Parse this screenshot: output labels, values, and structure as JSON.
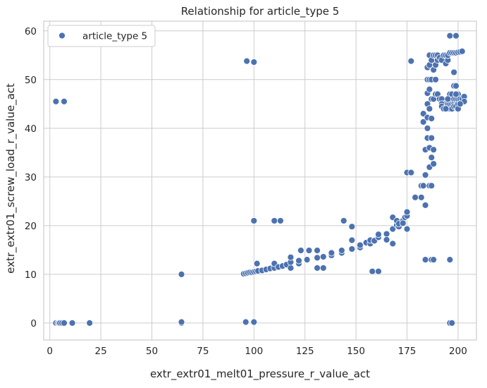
{
  "chart_data": {
    "type": "scatter",
    "title": "Relationship for article_type 5",
    "xlabel": "extr_extr01_melt01_pressure_r_value_act",
    "ylabel": "extr_extr01_screw_load_r_value_act",
    "xlim": [
      -3,
      209
    ],
    "ylim": [
      -3.5,
      62
    ],
    "xticks": [
      0,
      25,
      50,
      75,
      100,
      125,
      150,
      175,
      200
    ],
    "yticks": [
      0,
      10,
      20,
      30,
      40,
      50,
      60
    ],
    "grid": true,
    "legend": "top-left",
    "colors": {
      "point": "#4c72b0",
      "grid": "#cccccc",
      "background": "#ffffff"
    },
    "series": [
      {
        "name": "article_type 5",
        "points": [
          [
            3,
            45.5
          ],
          [
            7,
            45.5
          ],
          [
            3,
            0
          ],
          [
            4,
            0
          ],
          [
            4.5,
            0
          ],
          [
            5,
            0
          ],
          [
            6,
            0
          ],
          [
            7,
            0
          ],
          [
            11,
            0
          ],
          [
            19.5,
            0
          ],
          [
            64.5,
            10
          ],
          [
            64.5,
            0
          ],
          [
            64.5,
            0.2
          ],
          [
            96.5,
            53.8
          ],
          [
            100,
            53.6
          ],
          [
            100,
            21
          ],
          [
            96,
            0.2
          ],
          [
            100,
            0.2
          ],
          [
            95,
            10.1
          ],
          [
            96,
            10.2
          ],
          [
            97,
            10.3
          ],
          [
            98,
            10.4
          ],
          [
            99,
            10.4
          ],
          [
            100,
            10.5
          ],
          [
            101,
            10.6
          ],
          [
            101.5,
            12.2
          ],
          [
            102,
            10.7
          ],
          [
            104,
            10.8
          ],
          [
            106,
            11
          ],
          [
            108,
            11.2
          ],
          [
            110,
            11.3
          ],
          [
            110,
            12.2
          ],
          [
            112,
            11.5
          ],
          [
            114,
            11.7
          ],
          [
            116,
            12
          ],
          [
            118,
            11.3
          ],
          [
            118,
            12.5
          ],
          [
            118,
            13.5
          ],
          [
            122,
            12.2
          ],
          [
            122,
            12.8
          ],
          [
            123,
            14.9
          ],
          [
            126,
            13
          ],
          [
            127,
            14.9
          ],
          [
            131,
            13.4
          ],
          [
            131,
            14.9
          ],
          [
            131,
            11.3
          ],
          [
            134,
            11.3
          ],
          [
            134,
            13.6
          ],
          [
            138,
            13.9
          ],
          [
            138,
            14.4
          ],
          [
            143,
            14.4
          ],
          [
            143,
            14.9
          ],
          [
            144,
            21
          ],
          [
            148,
            15.2
          ],
          [
            148,
            17
          ],
          [
            148,
            19.8
          ],
          [
            152,
            15.5
          ],
          [
            152,
            16
          ],
          [
            155,
            16.5
          ],
          [
            157,
            16.3
          ],
          [
            157,
            17
          ],
          [
            158,
            10.6
          ],
          [
            159,
            16.8
          ],
          [
            159,
            16.9
          ],
          [
            161,
            10.6
          ],
          [
            161,
            17.6
          ],
          [
            161,
            18.2
          ],
          [
            165,
            18.3
          ],
          [
            165,
            17.1
          ],
          [
            168,
            19.3
          ],
          [
            168,
            16.3
          ],
          [
            168,
            21.7
          ],
          [
            170,
            20.1
          ],
          [
            170,
            21
          ],
          [
            171,
            19.8
          ],
          [
            171,
            20.4
          ],
          [
            173,
            21
          ],
          [
            173,
            20.5
          ],
          [
            174,
            21.7
          ],
          [
            175,
            22
          ],
          [
            175,
            19.3
          ],
          [
            175,
            22.8
          ],
          [
            175,
            30.9
          ],
          [
            177,
            30.9
          ],
          [
            177,
            53.8
          ],
          [
            110,
            21
          ],
          [
            113,
            21
          ],
          [
            179,
            25.8
          ],
          [
            182,
            25.8
          ],
          [
            182,
            28.2
          ],
          [
            183,
            28.2
          ],
          [
            183,
            41.3
          ],
          [
            183,
            43
          ],
          [
            184,
            24.2
          ],
          [
            184,
            13
          ],
          [
            184,
            30.4
          ],
          [
            184,
            35.6
          ],
          [
            185,
            38
          ],
          [
            185,
            40
          ],
          [
            185,
            42.2
          ],
          [
            185,
            45
          ],
          [
            185,
            47.2
          ],
          [
            185,
            50
          ],
          [
            185,
            52.5
          ],
          [
            186,
            28.2
          ],
          [
            186,
            32
          ],
          [
            186,
            36
          ],
          [
            186,
            44
          ],
          [
            186,
            48
          ],
          [
            186,
            50
          ],
          [
            186,
            53
          ],
          [
            186,
            55
          ],
          [
            187,
            28.2
          ],
          [
            187,
            34
          ],
          [
            187,
            38
          ],
          [
            187,
            42
          ],
          [
            187,
            46
          ],
          [
            187,
            50
          ],
          [
            187,
            54
          ],
          [
            187,
            13
          ],
          [
            188,
            13
          ],
          [
            188,
            32.7
          ],
          [
            188,
            35.6
          ],
          [
            188,
            46
          ],
          [
            188,
            52
          ],
          [
            188,
            55
          ],
          [
            189,
            47
          ],
          [
            189,
            50
          ],
          [
            189,
            53
          ],
          [
            189,
            55
          ],
          [
            190,
            47
          ],
          [
            190,
            54
          ],
          [
            190,
            55
          ],
          [
            191,
            46
          ],
          [
            191,
            54.5
          ],
          [
            192,
            46
          ],
          [
            192,
            54
          ],
          [
            193,
            45
          ],
          [
            193,
            55
          ],
          [
            194,
            53.3
          ],
          [
            194,
            55
          ],
          [
            195,
            45
          ],
          [
            195,
            54
          ],
          [
            195,
            55
          ],
          [
            196,
            13
          ],
          [
            196,
            0
          ],
          [
            197,
            0
          ],
          [
            196,
            59
          ],
          [
            199,
            59
          ],
          [
            196,
            55.5
          ],
          [
            197,
            55.5
          ],
          [
            198,
            55.5
          ],
          [
            199,
            55.5
          ],
          [
            198,
            51.5
          ],
          [
            198,
            48.7
          ],
          [
            199,
            48.7
          ],
          [
            200,
            55.6
          ],
          [
            201,
            55.7
          ],
          [
            202,
            55.8
          ],
          [
            196,
            46
          ],
          [
            196,
            47
          ],
          [
            196,
            44
          ],
          [
            196,
            45
          ],
          [
            197,
            45
          ],
          [
            197,
            46
          ],
          [
            197,
            47
          ],
          [
            197,
            44
          ],
          [
            198,
            45
          ],
          [
            198,
            46
          ],
          [
            198,
            44.5
          ],
          [
            199,
            46
          ],
          [
            199,
            44.5
          ],
          [
            200,
            45
          ],
          [
            200,
            46
          ],
          [
            200,
            47
          ],
          [
            201,
            46
          ],
          [
            202,
            46
          ],
          [
            203,
            46.5
          ],
          [
            203,
            45.5
          ],
          [
            192,
            45
          ],
          [
            192,
            44.5
          ],
          [
            193,
            44
          ],
          [
            194,
            44
          ],
          [
            195,
            46
          ],
          [
            199,
            47
          ],
          [
            200,
            44
          ],
          [
            201,
            45
          ]
        ]
      }
    ]
  }
}
